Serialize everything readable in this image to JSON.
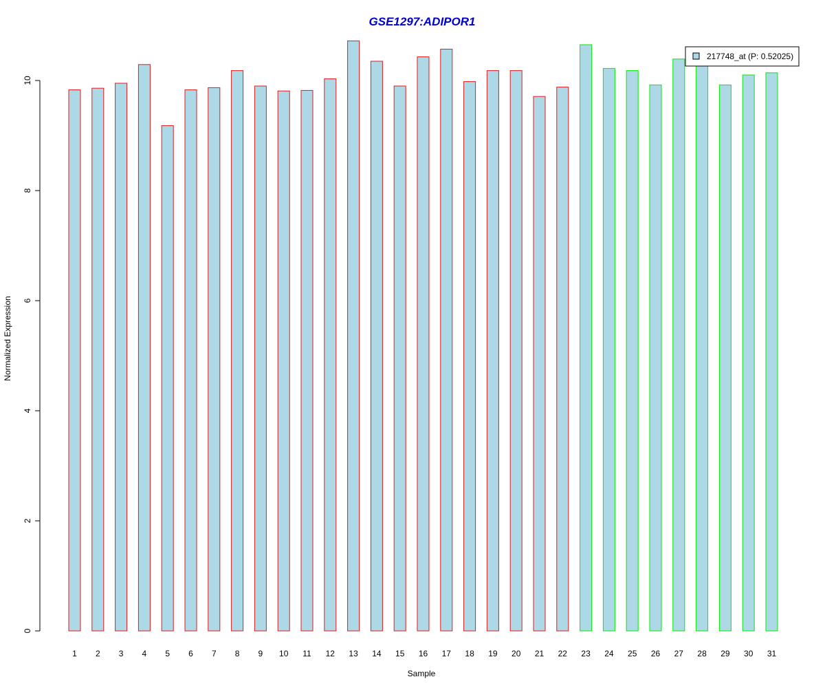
{
  "chart_data": {
    "type": "bar",
    "title": "GSE1297:ADIPOR1",
    "xlabel": "Sample",
    "ylabel": "Normalized Expression",
    "categories": [
      "1",
      "2",
      "3",
      "4",
      "5",
      "6",
      "7",
      "8",
      "9",
      "10",
      "11",
      "12",
      "13",
      "14",
      "15",
      "16",
      "17",
      "18",
      "19",
      "20",
      "21",
      "22",
      "23",
      "24",
      "25",
      "26",
      "27",
      "28",
      "29",
      "30",
      "31"
    ],
    "series": [
      {
        "name": "217748_at (P: 0.52025)",
        "values": [
          9.83,
          9.86,
          9.95,
          10.29,
          9.18,
          9.83,
          9.87,
          10.18,
          9.9,
          9.81,
          9.82,
          10.03,
          10.72,
          10.35,
          9.9,
          10.43,
          10.57,
          9.98,
          10.18,
          10.18,
          9.71,
          9.88,
          10.65,
          10.22,
          10.18,
          9.92,
          10.39,
          10.3,
          9.92,
          10.1,
          10.14
        ]
      }
    ],
    "groups": [
      {
        "from": 1,
        "to": 22,
        "border_color": "#e41a1c"
      },
      {
        "from": 23,
        "to": 31,
        "border_color": "#00ee00"
      }
    ],
    "yticks": [
      0,
      2,
      4,
      6,
      8,
      10
    ],
    "ylim": [
      0,
      10.72
    ],
    "grid": false,
    "legend_position": "top-right",
    "colors": {
      "bar_fill": "#add8e6",
      "title": "#0000cc"
    }
  }
}
